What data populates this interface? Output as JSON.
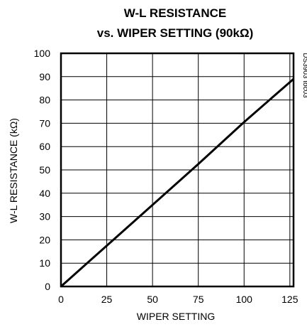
{
  "chart_data": {
    "type": "line",
    "title_line1": "W-L RESISTANCE",
    "title_line2": "vs. WIPER SETTING (90kΩ)",
    "xlabel": "WIPER SETTING",
    "ylabel": "W-L RESISTANCE (kΩ)",
    "xlim": [
      0,
      127
    ],
    "ylim": [
      0,
      100
    ],
    "x_ticks": [
      0,
      25,
      50,
      75,
      100,
      125
    ],
    "y_ticks": [
      0,
      10,
      20,
      30,
      40,
      50,
      60,
      70,
      80,
      90,
      100
    ],
    "grid": true,
    "figure_id": "DS3903 toc03",
    "series": [
      {
        "color": "#000000",
        "x": [
          0,
          25,
          50,
          75,
          100,
          127
        ],
        "y": [
          0,
          17.5,
          35.0,
          52.5,
          70.5,
          89.0
        ]
      }
    ]
  }
}
